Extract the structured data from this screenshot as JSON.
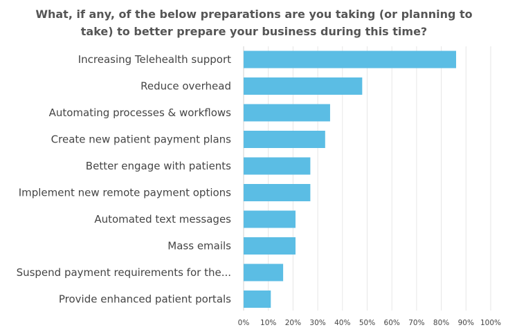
{
  "chart_data": {
    "type": "bar",
    "orientation": "horizontal",
    "title_lines": [
      "What, if any, of the below preparations are you taking (or planning to",
      "take) to better prepare your business during this time?"
    ],
    "categories": [
      "Increasing Telehealth support",
      "Reduce overhead",
      "Automating processes & workflows",
      "Create new patient payment plans",
      "Better engage with patients",
      "Implement new remote payment options",
      "Automated text messages",
      "Mass emails",
      "Suspend payment requirements for the...",
      "Provide enhanced patient portals"
    ],
    "values": [
      86,
      48,
      35,
      33,
      27,
      27,
      21,
      21,
      16,
      11
    ],
    "xlim": [
      0,
      100
    ],
    "x_ticks": [
      0,
      10,
      20,
      30,
      40,
      50,
      60,
      70,
      80,
      90,
      100
    ],
    "x_tick_labels": [
      "0%",
      "10%",
      "20%",
      "30%",
      "40%",
      "50%",
      "60%",
      "70%",
      "80%",
      "90%",
      "100%"
    ],
    "grid": true,
    "bar_color": "#5bbde4"
  }
}
